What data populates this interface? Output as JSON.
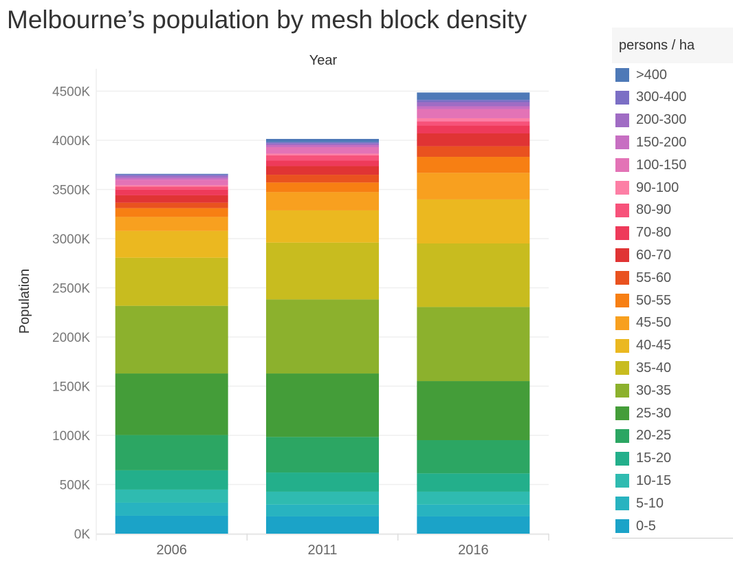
{
  "chart_data": {
    "type": "bar",
    "stacked": true,
    "title": "Melbourne’s population by mesh block density",
    "xlabel": "Year",
    "ylabel": "Population",
    "categories": [
      "2006",
      "2011",
      "2016"
    ],
    "ylim": [
      0,
      4500
    ],
    "yticks": [
      0,
      500,
      1000,
      1500,
      2000,
      2500,
      3000,
      3500,
      4000,
      4500
    ],
    "ytick_labels": [
      "0K",
      "500K",
      "1000K",
      "1500K",
      "2000K",
      "2500K",
      "3000K",
      "3500K",
      "4000K",
      "4500K"
    ],
    "grid": true,
    "legend_title": "persons / ha",
    "legend_placement": "right",
    "series": [
      {
        "name": "0-5",
        "color": "#1BA3C8",
        "values": [
          182,
          175,
          175
        ]
      },
      {
        "name": "5-10",
        "color": "#28B3C0",
        "values": [
          133,
          121,
          121
        ]
      },
      {
        "name": "10-15",
        "color": "#2FBBB0",
        "values": [
          133,
          131,
          131
        ]
      },
      {
        "name": "15-20",
        "color": "#23AF8B",
        "values": [
          196,
          195,
          186
        ]
      },
      {
        "name": "20-25",
        "color": "#2CA663",
        "values": [
          359,
          362,
          338
        ]
      },
      {
        "name": "25-30",
        "color": "#449D39",
        "values": [
          626,
          645,
          601
        ]
      },
      {
        "name": "30-35",
        "color": "#8CB12D",
        "values": [
          688,
          753,
          753
        ]
      },
      {
        "name": "35-40",
        "color": "#C8BC1F",
        "values": [
          489,
          578,
          646
        ]
      },
      {
        "name": "40-45",
        "color": "#EBB820",
        "values": [
          272,
          327,
          448
        ]
      },
      {
        "name": "45-50",
        "color": "#F8A01F",
        "values": [
          143,
          186,
          270
        ]
      },
      {
        "name": "50-55",
        "color": "#F77F13",
        "values": [
          89,
          98,
          163
        ]
      },
      {
        "name": "55-60",
        "color": "#E9521F",
        "values": [
          56,
          79,
          108
        ]
      },
      {
        "name": "60-70",
        "color": "#E03434",
        "values": [
          75,
          88,
          130
        ]
      },
      {
        "name": "70-80",
        "color": "#EE3A5A",
        "values": [
          56,
          56,
          80
        ]
      },
      {
        "name": "80-90",
        "color": "#F7527A",
        "values": [
          33,
          52,
          42
        ]
      },
      {
        "name": "90-100",
        "color": "#FD7FA5",
        "values": [
          13,
          18,
          32
        ]
      },
      {
        "name": "100-150",
        "color": "#E373B6",
        "values": [
          56,
          66,
          94
        ]
      },
      {
        "name": "150-200",
        "color": "#C76FC2",
        "values": [
          18,
          21,
          28
        ]
      },
      {
        "name": "200-300",
        "color": "#A06CC4",
        "values": [
          21,
          16,
          42
        ]
      },
      {
        "name": "300-400",
        "color": "#7B6FC5",
        "values": [
          14,
          14,
          23
        ]
      },
      {
        "name": ">400",
        "color": "#4E79B7",
        "values": [
          7,
          33,
          75
        ]
      }
    ]
  }
}
